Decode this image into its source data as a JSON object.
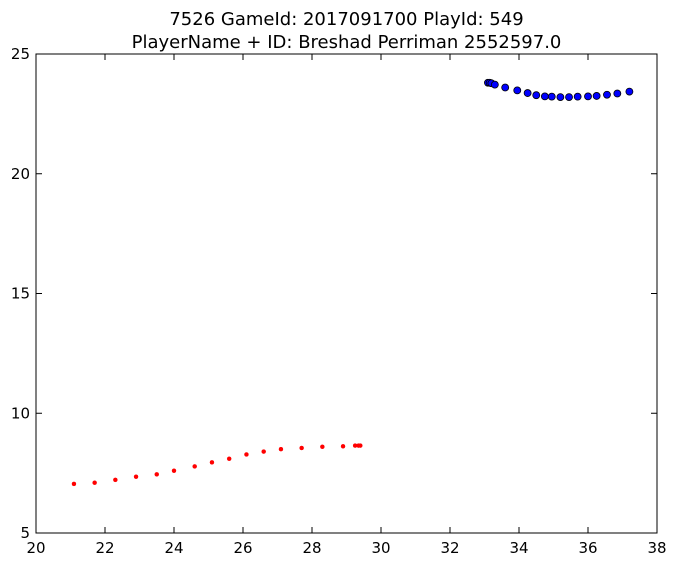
{
  "chart_data": {
    "type": "scatter",
    "title": "7526 GameId: 2017091700 PlayId: 549",
    "subtitle": "PlayerName + ID: Breshad Perriman 2552597.0",
    "xlabel": "",
    "ylabel": "",
    "xlim": [
      20,
      38
    ],
    "ylim": [
      5,
      25
    ],
    "xticks": [
      20,
      22,
      24,
      26,
      28,
      30,
      32,
      34,
      36,
      38
    ],
    "yticks": [
      5,
      10,
      15,
      20,
      25
    ],
    "grid": false,
    "series": [
      {
        "color": "#ff0000",
        "marker": "small-dot",
        "points": [
          [
            21.1,
            7.05
          ],
          [
            21.7,
            7.1
          ],
          [
            22.3,
            7.22
          ],
          [
            22.9,
            7.35
          ],
          [
            23.5,
            7.45
          ],
          [
            24.0,
            7.6
          ],
          [
            24.6,
            7.78
          ],
          [
            25.1,
            7.95
          ],
          [
            25.6,
            8.1
          ],
          [
            26.1,
            8.28
          ],
          [
            26.6,
            8.4
          ],
          [
            27.1,
            8.5
          ],
          [
            27.7,
            8.55
          ],
          [
            28.3,
            8.6
          ],
          [
            28.9,
            8.62
          ],
          [
            29.25,
            8.65
          ],
          [
            29.35,
            8.65
          ],
          [
            29.4,
            8.65
          ]
        ]
      },
      {
        "color": "#0000ff",
        "marker": "circle",
        "points": [
          [
            33.1,
            23.8
          ],
          [
            33.15,
            23.8
          ],
          [
            33.2,
            23.78
          ],
          [
            33.3,
            23.72
          ],
          [
            33.6,
            23.6
          ],
          [
            33.95,
            23.48
          ],
          [
            34.25,
            23.37
          ],
          [
            34.5,
            23.28
          ],
          [
            34.75,
            23.23
          ],
          [
            34.95,
            23.22
          ],
          [
            35.2,
            23.2
          ],
          [
            35.45,
            23.2
          ],
          [
            35.7,
            23.22
          ],
          [
            36.0,
            23.23
          ],
          [
            36.25,
            23.25
          ],
          [
            36.55,
            23.3
          ],
          [
            36.85,
            23.35
          ],
          [
            37.2,
            23.43
          ]
        ]
      }
    ]
  }
}
